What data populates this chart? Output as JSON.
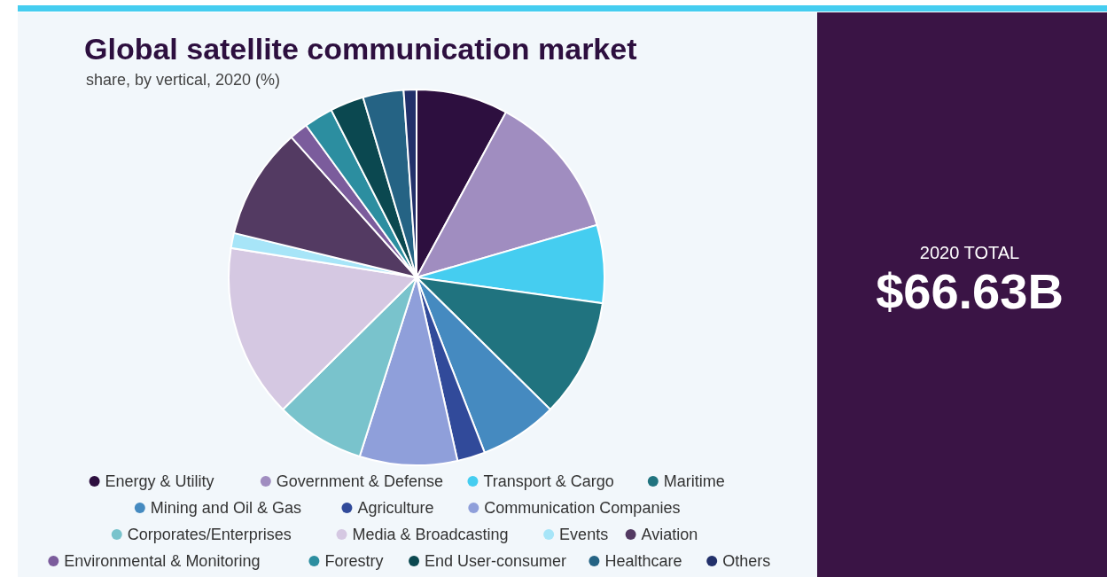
{
  "chart_data": {
    "type": "pie",
    "title": "Global satellite communication market",
    "subtitle": "share, by vertical, 2020 (%)",
    "categories": [
      "Energy & Utility",
      "Government & Defense",
      "Transport & Cargo",
      "Maritime",
      "Mining and Oil & Gas",
      "Agriculture",
      "Communication Companies",
      "Corporates/Enterprises",
      "Media & Broadcasting",
      "Events",
      "Aviation",
      "Environmental & Monitoring",
      "Forestry",
      "End User-consumer",
      "Healthcare",
      "Others"
    ],
    "values": [
      7.9,
      12.6,
      6.7,
      10.2,
      6.7,
      2.4,
      8.4,
      7.7,
      14.9,
      1.3,
      9.6,
      1.6,
      2.5,
      2.9,
      3.5,
      1.1
    ],
    "colors": [
      "#2d0f3f",
      "#a08dc0",
      "#45cdf0",
      "#20737f",
      "#458ac0",
      "#314a9a",
      "#8f9fda",
      "#79c3cc",
      "#d5c8e2",
      "#a7e5f8",
      "#533a62",
      "#7b5c9c",
      "#2c8ea0",
      "#0b4850",
      "#256384",
      "#22306a"
    ],
    "legend": "bottom",
    "annotations": [
      "2020 TOTAL",
      "$66.63B"
    ]
  }
}
